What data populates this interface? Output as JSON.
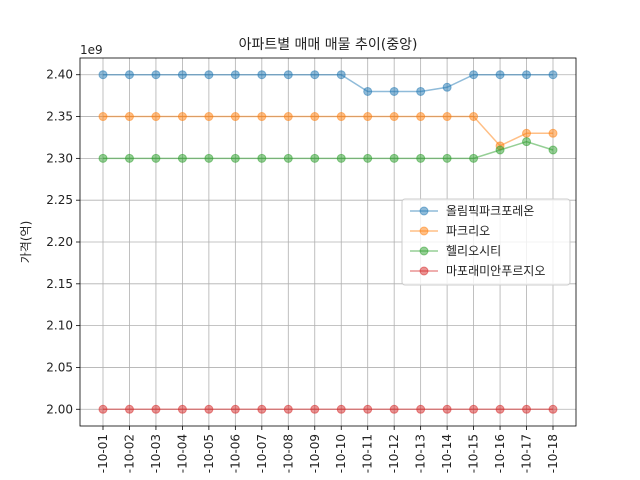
{
  "chart_data": {
    "type": "line",
    "title": "아파트별 매매 매물 추이(중앙)",
    "xlabel": "",
    "ylabel": "가격(억)",
    "y_offset_label": "1e9",
    "categories": [
      "-10-01",
      "-10-02",
      "-10-03",
      "-10-04",
      "-10-05",
      "-10-06",
      "-10-07",
      "-10-08",
      "-10-09",
      "-10-10",
      "-10-11",
      "-10-12",
      "-10-13",
      "-10-14",
      "-10-15",
      "-10-16",
      "-10-17",
      "-10-18"
    ],
    "ylim": [
      1.98,
      2.42
    ],
    "yticks": [
      "2.00",
      "2.05",
      "2.10",
      "2.15",
      "2.20",
      "2.25",
      "2.30",
      "2.35",
      "2.40"
    ],
    "grid": true,
    "legend_position": "center-right",
    "series": [
      {
        "name": "올림픽파크포레온",
        "color": "#1f77b4",
        "values": [
          2.4,
          2.4,
          2.4,
          2.4,
          2.4,
          2.4,
          2.4,
          2.4,
          2.4,
          2.4,
          2.38,
          2.38,
          2.38,
          2.385,
          2.4,
          2.4,
          2.4,
          2.4
        ]
      },
      {
        "name": "파크리오",
        "color": "#ff7f0e",
        "values": [
          2.35,
          2.35,
          2.35,
          2.35,
          2.35,
          2.35,
          2.35,
          2.35,
          2.35,
          2.35,
          2.35,
          2.35,
          2.35,
          2.35,
          2.35,
          2.315,
          2.33,
          2.33
        ]
      },
      {
        "name": "헬리오시티",
        "color": "#2ca02c",
        "values": [
          2.3,
          2.3,
          2.3,
          2.3,
          2.3,
          2.3,
          2.3,
          2.3,
          2.3,
          2.3,
          2.3,
          2.3,
          2.3,
          2.3,
          2.3,
          2.31,
          2.32,
          2.31
        ]
      },
      {
        "name": "마포래미안푸르지오",
        "color": "#d62728",
        "values": [
          2.0,
          2.0,
          2.0,
          2.0,
          2.0,
          2.0,
          2.0,
          2.0,
          2.0,
          2.0,
          2.0,
          2.0,
          2.0,
          2.0,
          2.0,
          2.0,
          2.0,
          2.0
        ]
      }
    ]
  }
}
